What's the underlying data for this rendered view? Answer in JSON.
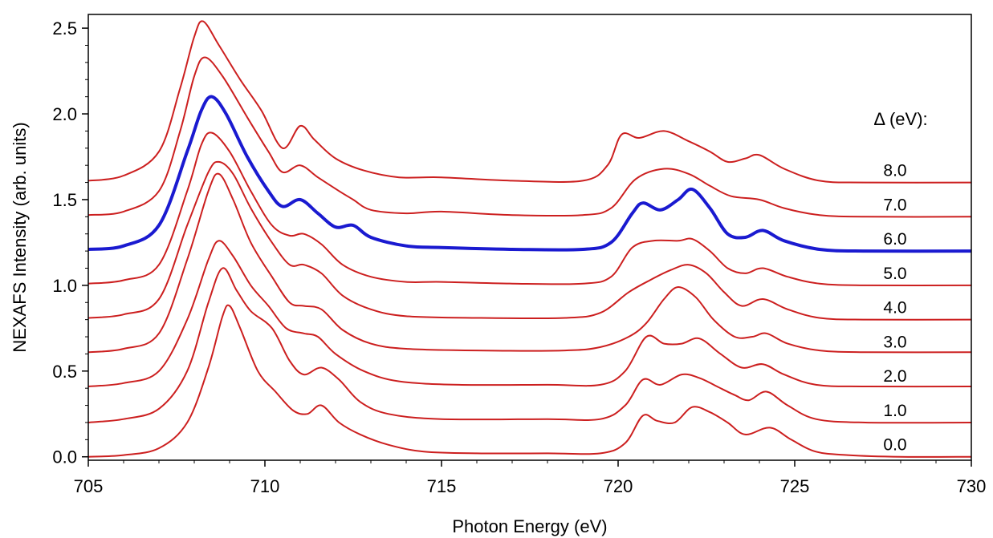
{
  "chart_data": {
    "type": "line",
    "xlabel": "Photon Energy (eV)",
    "ylabel": "NEXAFS Intensity (arb. units)",
    "xlim": [
      705,
      730
    ],
    "ylim": [
      -0.02,
      2.58
    ],
    "xticks": [
      "705",
      "710",
      "715",
      "720",
      "725",
      "730"
    ],
    "yticks": [
      "0.0",
      "0.5",
      "1.0",
      "1.5",
      "2.0",
      "2.5"
    ],
    "legend_title": "Δ (eV):",
    "colors": {
      "default": "#cc1f1f",
      "highlight": "#1a1ad0",
      "axis": "#000000"
    },
    "series": [
      {
        "name": "0.0",
        "offset": 0.0,
        "highlight": false,
        "points": [
          [
            705,
            0.0
          ],
          [
            706,
            0.01
          ],
          [
            707,
            0.05
          ],
          [
            707.8,
            0.2
          ],
          [
            708.4,
            0.52
          ],
          [
            708.8,
            0.82
          ],
          [
            709.0,
            0.88
          ],
          [
            709.3,
            0.75
          ],
          [
            709.8,
            0.5
          ],
          [
            710.3,
            0.38
          ],
          [
            710.8,
            0.27
          ],
          [
            711.2,
            0.25
          ],
          [
            711.6,
            0.3
          ],
          [
            712.1,
            0.2
          ],
          [
            712.7,
            0.13
          ],
          [
            713.5,
            0.07
          ],
          [
            714.5,
            0.03
          ],
          [
            716,
            0.02
          ],
          [
            718,
            0.02
          ],
          [
            719.5,
            0.02
          ],
          [
            720.2,
            0.08
          ],
          [
            720.7,
            0.24
          ],
          [
            721.1,
            0.21
          ],
          [
            721.6,
            0.2
          ],
          [
            722.1,
            0.29
          ],
          [
            722.6,
            0.26
          ],
          [
            723.1,
            0.2
          ],
          [
            723.6,
            0.13
          ],
          [
            724.3,
            0.17
          ],
          [
            724.9,
            0.1
          ],
          [
            725.6,
            0.03
          ],
          [
            726.5,
            0.01
          ],
          [
            728,
            0.0
          ],
          [
            730,
            0.0
          ]
        ]
      },
      {
        "name": "1.0",
        "offset": 0.2,
        "highlight": false,
        "points": [
          [
            705,
            0.2
          ],
          [
            706,
            0.22
          ],
          [
            707,
            0.28
          ],
          [
            707.8,
            0.5
          ],
          [
            708.4,
            0.9
          ],
          [
            708.8,
            1.1
          ],
          [
            709.2,
            0.97
          ],
          [
            709.6,
            0.85
          ],
          [
            710.2,
            0.75
          ],
          [
            710.7,
            0.56
          ],
          [
            711.1,
            0.48
          ],
          [
            711.6,
            0.52
          ],
          [
            712.1,
            0.45
          ],
          [
            712.7,
            0.32
          ],
          [
            713.5,
            0.25
          ],
          [
            715,
            0.22
          ],
          [
            718,
            0.22
          ],
          [
            719.5,
            0.22
          ],
          [
            720.2,
            0.3
          ],
          [
            720.7,
            0.45
          ],
          [
            721.2,
            0.42
          ],
          [
            721.8,
            0.48
          ],
          [
            722.3,
            0.46
          ],
          [
            722.8,
            0.41
          ],
          [
            723.3,
            0.36
          ],
          [
            723.7,
            0.33
          ],
          [
            724.2,
            0.38
          ],
          [
            724.8,
            0.3
          ],
          [
            725.6,
            0.22
          ],
          [
            727,
            0.2
          ],
          [
            730,
            0.2
          ]
        ]
      },
      {
        "name": "2.0",
        "offset": 0.4,
        "highlight": false,
        "points": [
          [
            705,
            0.41
          ],
          [
            706,
            0.43
          ],
          [
            707,
            0.5
          ],
          [
            707.8,
            0.8
          ],
          [
            708.4,
            1.15
          ],
          [
            708.7,
            1.26
          ],
          [
            709.1,
            1.17
          ],
          [
            709.6,
            1.0
          ],
          [
            710.1,
            0.88
          ],
          [
            710.6,
            0.75
          ],
          [
            711.1,
            0.72
          ],
          [
            711.5,
            0.7
          ],
          [
            712.0,
            0.6
          ],
          [
            712.8,
            0.5
          ],
          [
            713.8,
            0.44
          ],
          [
            715.5,
            0.42
          ],
          [
            718,
            0.42
          ],
          [
            719.5,
            0.42
          ],
          [
            720.2,
            0.5
          ],
          [
            720.8,
            0.7
          ],
          [
            721.3,
            0.66
          ],
          [
            721.8,
            0.66
          ],
          [
            722.3,
            0.69
          ],
          [
            722.9,
            0.6
          ],
          [
            723.5,
            0.52
          ],
          [
            724.1,
            0.54
          ],
          [
            724.7,
            0.48
          ],
          [
            725.6,
            0.42
          ],
          [
            727,
            0.41
          ],
          [
            730,
            0.41
          ]
        ]
      },
      {
        "name": "3.0",
        "offset": 0.6,
        "highlight": false,
        "points": [
          [
            705,
            0.61
          ],
          [
            706,
            0.63
          ],
          [
            707,
            0.72
          ],
          [
            707.8,
            1.15
          ],
          [
            708.4,
            1.55
          ],
          [
            708.7,
            1.65
          ],
          [
            709.1,
            1.5
          ],
          [
            709.6,
            1.25
          ],
          [
            710.2,
            1.05
          ],
          [
            710.7,
            0.9
          ],
          [
            711.1,
            0.88
          ],
          [
            711.6,
            0.86
          ],
          [
            712.2,
            0.74
          ],
          [
            713,
            0.66
          ],
          [
            714,
            0.63
          ],
          [
            716,
            0.62
          ],
          [
            718.5,
            0.62
          ],
          [
            719.5,
            0.64
          ],
          [
            720.3,
            0.7
          ],
          [
            720.8,
            0.78
          ],
          [
            721.3,
            0.92
          ],
          [
            721.7,
            0.99
          ],
          [
            722.2,
            0.93
          ],
          [
            722.7,
            0.8
          ],
          [
            723.3,
            0.7
          ],
          [
            723.8,
            0.7
          ],
          [
            724.2,
            0.72
          ],
          [
            724.8,
            0.66
          ],
          [
            725.7,
            0.62
          ],
          [
            727,
            0.61
          ],
          [
            730,
            0.61
          ]
        ]
      },
      {
        "name": "4.0",
        "offset": 0.8,
        "highlight": false,
        "points": [
          [
            705,
            0.81
          ],
          [
            706,
            0.83
          ],
          [
            707,
            0.92
          ],
          [
            707.8,
            1.35
          ],
          [
            708.4,
            1.66
          ],
          [
            708.7,
            1.72
          ],
          [
            709.1,
            1.65
          ],
          [
            709.6,
            1.45
          ],
          [
            710.2,
            1.25
          ],
          [
            710.7,
            1.12
          ],
          [
            711.1,
            1.12
          ],
          [
            711.6,
            1.07
          ],
          [
            712.2,
            0.94
          ],
          [
            713,
            0.86
          ],
          [
            714,
            0.82
          ],
          [
            716,
            0.81
          ],
          [
            718.5,
            0.81
          ],
          [
            719.5,
            0.84
          ],
          [
            720.3,
            0.96
          ],
          [
            720.9,
            1.03
          ],
          [
            721.5,
            1.09
          ],
          [
            722.0,
            1.12
          ],
          [
            722.5,
            1.07
          ],
          [
            723.0,
            0.96
          ],
          [
            723.5,
            0.88
          ],
          [
            724.1,
            0.92
          ],
          [
            724.8,
            0.86
          ],
          [
            725.7,
            0.81
          ],
          [
            727,
            0.8
          ],
          [
            730,
            0.8
          ]
        ]
      },
      {
        "name": "5.0",
        "offset": 1.0,
        "highlight": false,
        "points": [
          [
            705,
            1.01
          ],
          [
            706,
            1.03
          ],
          [
            707,
            1.12
          ],
          [
            707.8,
            1.55
          ],
          [
            708.2,
            1.82
          ],
          [
            708.5,
            1.89
          ],
          [
            709.0,
            1.78
          ],
          [
            709.6,
            1.55
          ],
          [
            710.2,
            1.35
          ],
          [
            710.7,
            1.29
          ],
          [
            711.1,
            1.3
          ],
          [
            711.6,
            1.24
          ],
          [
            712.2,
            1.12
          ],
          [
            713,
            1.05
          ],
          [
            714,
            1.02
          ],
          [
            715,
            1.02
          ],
          [
            717,
            1.01
          ],
          [
            719,
            1.01
          ],
          [
            719.8,
            1.05
          ],
          [
            720.4,
            1.22
          ],
          [
            721,
            1.26
          ],
          [
            721.7,
            1.26
          ],
          [
            722.1,
            1.27
          ],
          [
            722.6,
            1.2
          ],
          [
            723.1,
            1.1
          ],
          [
            723.6,
            1.07
          ],
          [
            724.1,
            1.1
          ],
          [
            724.8,
            1.05
          ],
          [
            725.7,
            1.01
          ],
          [
            727,
            1.0
          ],
          [
            730,
            1.0
          ]
        ]
      },
      {
        "name": "6.0",
        "offset": 1.2,
        "highlight": true,
        "points": [
          [
            705,
            1.21
          ],
          [
            706,
            1.23
          ],
          [
            707,
            1.35
          ],
          [
            707.8,
            1.78
          ],
          [
            708.2,
            2.02
          ],
          [
            708.5,
            2.1
          ],
          [
            708.9,
            2.0
          ],
          [
            709.5,
            1.75
          ],
          [
            710.1,
            1.55
          ],
          [
            710.5,
            1.46
          ],
          [
            711.0,
            1.5
          ],
          [
            711.5,
            1.42
          ],
          [
            712.0,
            1.34
          ],
          [
            712.5,
            1.35
          ],
          [
            713,
            1.28
          ],
          [
            714,
            1.23
          ],
          [
            715,
            1.22
          ],
          [
            717,
            1.21
          ],
          [
            719,
            1.21
          ],
          [
            719.8,
            1.25
          ],
          [
            720.4,
            1.42
          ],
          [
            720.7,
            1.48
          ],
          [
            721.2,
            1.44
          ],
          [
            721.7,
            1.5
          ],
          [
            722.1,
            1.56
          ],
          [
            722.6,
            1.45
          ],
          [
            723.1,
            1.3
          ],
          [
            723.6,
            1.28
          ],
          [
            724.1,
            1.32
          ],
          [
            724.7,
            1.26
          ],
          [
            725.7,
            1.21
          ],
          [
            727,
            1.2
          ],
          [
            730,
            1.2
          ]
        ]
      },
      {
        "name": "7.0",
        "offset": 1.4,
        "highlight": false,
        "points": [
          [
            705,
            1.41
          ],
          [
            706,
            1.43
          ],
          [
            707,
            1.55
          ],
          [
            707.6,
            1.9
          ],
          [
            708.0,
            2.22
          ],
          [
            708.3,
            2.33
          ],
          [
            708.8,
            2.22
          ],
          [
            709.5,
            1.98
          ],
          [
            710.1,
            1.78
          ],
          [
            710.5,
            1.66
          ],
          [
            711.0,
            1.7
          ],
          [
            711.5,
            1.63
          ],
          [
            712.1,
            1.55
          ],
          [
            712.5,
            1.5
          ],
          [
            713,
            1.44
          ],
          [
            714,
            1.42
          ],
          [
            715,
            1.43
          ],
          [
            717,
            1.41
          ],
          [
            719,
            1.41
          ],
          [
            719.8,
            1.45
          ],
          [
            720.5,
            1.62
          ],
          [
            721.3,
            1.68
          ],
          [
            722,
            1.65
          ],
          [
            722.6,
            1.58
          ],
          [
            723.2,
            1.52
          ],
          [
            724,
            1.5
          ],
          [
            724.7,
            1.45
          ],
          [
            725.7,
            1.41
          ],
          [
            727,
            1.4
          ],
          [
            730,
            1.4
          ]
        ]
      },
      {
        "name": "8.0",
        "offset": 1.6,
        "highlight": false,
        "points": [
          [
            705,
            1.61
          ],
          [
            706,
            1.64
          ],
          [
            707,
            1.78
          ],
          [
            707.6,
            2.15
          ],
          [
            708.0,
            2.45
          ],
          [
            708.25,
            2.54
          ],
          [
            708.7,
            2.4
          ],
          [
            709.3,
            2.2
          ],
          [
            709.9,
            2.02
          ],
          [
            710.5,
            1.8
          ],
          [
            711.0,
            1.93
          ],
          [
            711.4,
            1.85
          ],
          [
            712.0,
            1.74
          ],
          [
            712.8,
            1.67
          ],
          [
            713.8,
            1.63
          ],
          [
            715,
            1.63
          ],
          [
            717,
            1.61
          ],
          [
            719,
            1.61
          ],
          [
            719.7,
            1.7
          ],
          [
            720.1,
            1.88
          ],
          [
            720.6,
            1.86
          ],
          [
            721.3,
            1.9
          ],
          [
            722,
            1.84
          ],
          [
            722.6,
            1.78
          ],
          [
            723.1,
            1.72
          ],
          [
            723.6,
            1.74
          ],
          [
            724.0,
            1.76
          ],
          [
            724.7,
            1.68
          ],
          [
            725.7,
            1.61
          ],
          [
            727,
            1.6
          ],
          [
            730,
            1.6
          ]
        ]
      }
    ]
  }
}
